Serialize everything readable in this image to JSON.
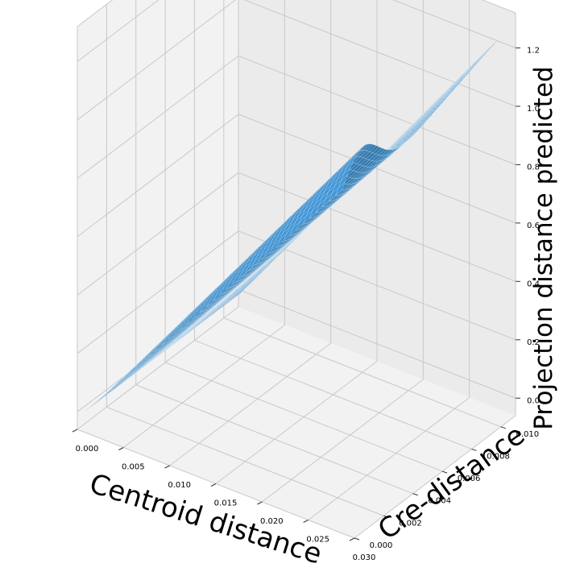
{
  "chart_data": {
    "type": "surface",
    "title": "",
    "xlabel": "Centroid distance",
    "ylabel": "Cre-distance",
    "zlabel": "Projection distance predicted",
    "x_ticks": [
      "0.000",
      "0.005",
      "0.010",
      "0.015",
      "0.020",
      "0.025",
      "0.030"
    ],
    "y_ticks": [
      "0.000",
      "0.002",
      "0.004",
      "0.006",
      "0.008",
      "0.010"
    ],
    "z_ticks": [
      "0.0",
      "0.2",
      "0.4",
      "0.6",
      "0.8",
      "1.0",
      "1.2"
    ],
    "xlim": [
      0.0,
      0.03
    ],
    "ylim": [
      0.0,
      0.011
    ],
    "zlim": [
      -0.06,
      1.32
    ],
    "surface": {
      "description_function": "z rises roughly linearly with centroid distance and has a mild hump near low Cre-distance, flattening toward higher Cre-distance",
      "x_range": [
        0.0005,
        0.0285
      ],
      "y_range": [
        0.0001,
        0.0108
      ],
      "corner_values": {
        "x_min_y_min": 0.0,
        "x_max_y_min": 1.02,
        "x_min_y_max": 0.0,
        "x_max_y_max": 1.22
      },
      "color": "#3a86c0",
      "line_color": "#ffffff"
    },
    "grid": true
  }
}
